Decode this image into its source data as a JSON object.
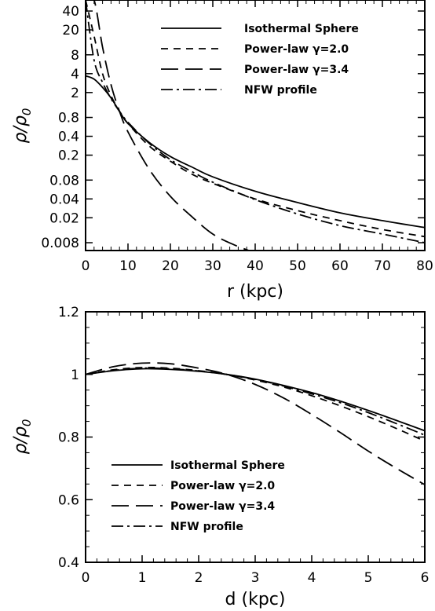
{
  "chart_data": [
    {
      "type": "line",
      "xlabel": "r (kpc)",
      "ylabel": "ρ/ρ0",
      "ylabel_main": "ρ/ρ",
      "ylabel_sub": "0",
      "xlim": [
        0,
        80
      ],
      "ylim": [
        0.006,
        60
      ],
      "yscale": "log",
      "xticks": [
        0,
        10,
        20,
        30,
        40,
        50,
        60,
        70,
        80
      ],
      "yticks": [
        0.008,
        0.02,
        0.04,
        0.08,
        0.2,
        0.4,
        0.8,
        2,
        4,
        8,
        20,
        40
      ],
      "ytick_labels": [
        "0.008",
        "0.02",
        "0.04",
        "0.08",
        "0.2",
        "0.4",
        "0.8",
        "2",
        "4",
        "8",
        "20",
        "40"
      ],
      "grid": false,
      "legend_position": "top-right",
      "series": [
        {
          "name": "Isothermal Sphere",
          "dash": "solid",
          "model": "iso",
          "x": [
            0,
            2,
            4,
            6,
            8,
            10,
            15,
            20,
            25,
            30,
            40,
            50,
            60,
            70,
            80
          ],
          "y": [
            3.69,
            3.28,
            2.41,
            1.64,
            1.0,
            0.64,
            0.32,
            0.19,
            0.13,
            0.09,
            0.053,
            0.035,
            0.024,
            0.018,
            0.014
          ]
        },
        {
          "name": "Power-law γ=2.0",
          "dash": "short",
          "model": "pow2",
          "x": [
            0,
            2,
            4,
            6,
            8,
            10,
            15,
            20,
            25,
            30,
            40,
            50,
            60,
            70,
            80
          ],
          "y": [
            60,
            16,
            4.0,
            1.78,
            1.0,
            0.64,
            0.28,
            0.16,
            0.1,
            0.071,
            0.04,
            0.026,
            0.018,
            0.013,
            0.01
          ]
        },
        {
          "name": "Power-law γ=3.4",
          "dash": "long",
          "model": "pow34",
          "x": [
            0,
            2,
            4,
            6,
            8,
            10,
            15,
            20,
            25,
            30,
            35,
            40
          ],
          "y": [
            60,
            60,
            10.6,
            2.66,
            1.0,
            0.47,
            0.119,
            0.044,
            0.021,
            0.011,
            0.0074,
            0.0055
          ]
        },
        {
          "name": "NFW profile",
          "dash": "dashdot",
          "model": "nfw",
          "x": [
            0,
            2,
            4,
            6,
            8,
            10,
            15,
            20,
            25,
            30,
            40,
            50,
            60,
            70,
            80
          ],
          "y": [
            60,
            6.6,
            2.9,
            1.6,
            1.0,
            0.67,
            0.31,
            0.17,
            0.11,
            0.074,
            0.039,
            0.023,
            0.015,
            0.011,
            0.008
          ]
        }
      ]
    },
    {
      "type": "line",
      "xlabel": "d (kpc)",
      "ylabel": "ρ/ρ0",
      "ylabel_main": "ρ/ρ",
      "ylabel_sub": "0",
      "xlim": [
        0,
        6
      ],
      "ylim": [
        0.4,
        1.2
      ],
      "yscale": "linear",
      "xticks": [
        0,
        1,
        2,
        3,
        4,
        5,
        6
      ],
      "yticks": [
        0.4,
        0.6,
        0.8,
        1,
        1.2
      ],
      "ytick_labels": [
        "0.4",
        "0.6",
        "0.8",
        "1",
        "1.2"
      ],
      "grid": false,
      "legend_position": "bottom-left",
      "series": [
        {
          "name": "Isothermal Sphere",
          "dash": "solid",
          "model": "iso",
          "x": [
            0,
            0.5,
            1,
            1.5,
            2,
            2.5,
            3,
            3.5,
            4,
            4.5,
            5,
            5.5,
            6
          ],
          "y": [
            1.0,
            1.012,
            1.018,
            1.016,
            1.01,
            1.0,
            0.985,
            0.965,
            0.942,
            0.915,
            0.885,
            0.853,
            0.82
          ]
        },
        {
          "name": "Power-law γ=2.0",
          "dash": "short",
          "model": "pow2",
          "x": [
            0,
            0.5,
            1,
            1.5,
            2,
            2.5,
            3,
            3.5,
            4,
            4.5,
            5,
            5.5,
            6
          ],
          "y": [
            1.0,
            1.015,
            1.022,
            1.02,
            1.012,
            1.0,
            0.982,
            0.96,
            0.932,
            0.9,
            0.865,
            0.827,
            0.787
          ]
        },
        {
          "name": "Power-law γ=3.4",
          "dash": "long",
          "model": "pow34",
          "x": [
            0,
            0.5,
            1,
            1.5,
            2,
            2.5,
            3,
            3.5,
            4,
            4.5,
            5,
            5.5,
            6
          ],
          "y": [
            1.0,
            1.025,
            1.036,
            1.034,
            1.02,
            1.0,
            0.968,
            0.925,
            0.872,
            0.815,
            0.755,
            0.7,
            0.648
          ]
        },
        {
          "name": "NFW profile",
          "dash": "dashdot",
          "model": "nfw",
          "x": [
            0,
            0.5,
            1,
            1.5,
            2,
            2.5,
            3,
            3.5,
            4,
            4.5,
            5,
            5.5,
            6
          ],
          "y": [
            1.0,
            1.013,
            1.02,
            1.018,
            1.011,
            1.0,
            0.984,
            0.963,
            0.938,
            0.91,
            0.878,
            0.843,
            0.806
          ]
        }
      ]
    }
  ]
}
